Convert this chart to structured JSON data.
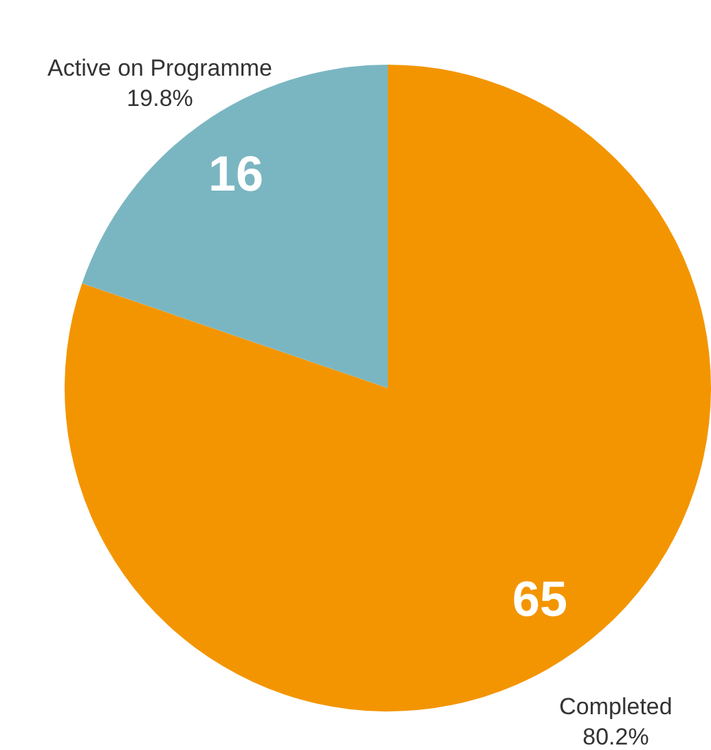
{
  "chart_data": {
    "type": "pie",
    "categories": [
      "Completed",
      "Active on Programme"
    ],
    "values": [
      65,
      16
    ],
    "colors": [
      "#f39500",
      "#7ab6c1"
    ],
    "data_labels": true,
    "annotations": [
      "80.2%",
      "19.8%"
    ]
  }
}
